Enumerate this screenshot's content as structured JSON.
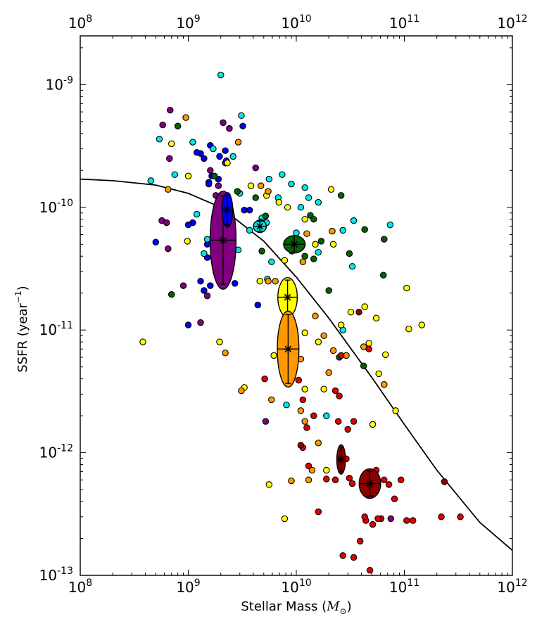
{
  "chart_data": {
    "type": "scatter",
    "xlabel": "Stellar Mass (",
    "xlabel_unit": "M",
    "xlabel_sub": "⊙",
    "xlabel_close": ")",
    "ylabel": "SSFR (year",
    "ylabel_sup": "−1",
    "ylabel_close": ")",
    "x_scale": "log",
    "y_scale": "log",
    "xlim": [
      100000000.0,
      1000000000000.0
    ],
    "ylim": [
      1e-13,
      2.5e-09
    ],
    "x_tick_labels": [
      {
        "base": "10",
        "exp": "8",
        "value": 100000000.0
      },
      {
        "base": "10",
        "exp": "9",
        "value": 1000000000.0
      },
      {
        "base": "10",
        "exp": "10",
        "value": 10000000000.0
      },
      {
        "base": "10",
        "exp": "11",
        "value": 100000000000.0
      },
      {
        "base": "10",
        "exp": "12",
        "value": 1000000000000.0
      }
    ],
    "y_tick_labels": [
      {
        "base": "10",
        "exp": "-9",
        "value": 1e-09
      },
      {
        "base": "10",
        "exp": "-10",
        "value": 1e-10
      },
      {
        "base": "10",
        "exp": "-11",
        "value": 1e-11
      },
      {
        "base": "10",
        "exp": "-12",
        "value": 1e-12
      },
      {
        "base": "10",
        "exp": "-13",
        "value": 1e-13
      }
    ],
    "top_axis_duplicate": true,
    "grid": false,
    "colors": {
      "purple": "#800080",
      "blue": "#0000ee",
      "cyan": "#00e8e8",
      "green": "#006400",
      "yellow": "#ffff00",
      "orange": "#ff9900",
      "red": "#e00000",
      "darkred": "#8b0000"
    },
    "curve": {
      "x": [
        100000000.0,
        200000000.0,
        500000000.0,
        1000000000.0,
        2000000000.0,
        5000000000.0,
        10000000000.0,
        20000000000.0,
        50000000000.0,
        100000000000.0,
        200000000000.0,
        500000000000.0,
        1000000000000.0
      ],
      "y": [
        1.7e-10,
        1.65e-10,
        1.52e-10,
        1.3e-10,
        1e-10,
        5.3e-11,
        2.7e-11,
        1.25e-11,
        4.1e-12,
        1.7e-12,
        7.2e-13,
        2.7e-13,
        1.6e-13
      ]
    },
    "series": [
      {
        "color": "purple",
        "x": [
          680000000.0,
          580000000.0,
          2100000000.0,
          2400000000.0,
          670000000.0,
          1600000000.0,
          2200000000.0,
          1900000000.0,
          650000000.0,
          1800000000.0,
          1950000000.0,
          570000000.0,
          4200000000.0,
          1300000000.0,
          1500000000.0,
          5200000000.0,
          75000000000.0,
          630000000.0,
          900000000.0
        ],
        "y": [
          6.2e-10,
          4.7e-10,
          4.9e-10,
          4.4e-10,
          2.5e-10,
          2e-10,
          2.3e-10,
          1.5e-10,
          4.6e-11,
          1.25e-10,
          1e-10,
          7.8e-11,
          2.1e-10,
          1.15e-11,
          1.9e-11,
          1.8e-12,
          2.9e-13,
          7.5e-11,
          2.3e-11
        ]
      },
      {
        "color": "blue",
        "x": [
          1600000000.0,
          1950000000.0,
          2200000000.0,
          1300000000.0,
          1400000000.0,
          1650000000.0,
          1900000000.0,
          1550000000.0,
          2000000000.0,
          2300000000.0,
          1100000000.0,
          1500000000.0,
          1000000000.0,
          500000000.0,
          3200000000.0,
          1400000000.0,
          1600000000.0,
          2100000000.0,
          1300000000.0,
          2700000000.0,
          1000000000.0,
          1800000000.0,
          3300000000.0,
          1500000000.0,
          4400000000.0,
          3700000000.0,
          1550000000.0,
          1200000000.0,
          2250000000.0
        ],
        "y": [
          3.2e-10,
          2.6e-10,
          2.9e-10,
          2.75e-10,
          2.5e-10,
          1.8e-10,
          1.7e-10,
          1.6e-10,
          1.2e-10,
          1.25e-10,
          7.5e-11,
          5e-11,
          7.2e-11,
          5.2e-11,
          4.6e-10,
          2.1e-11,
          2.3e-11,
          2.4e-11,
          2.5e-11,
          2.4e-11,
          1.1e-11,
          3e-11,
          9.5e-11,
          3.9e-11,
          1.6e-11,
          9.5e-11,
          1.55e-10,
          2.8e-10,
          2.4e-10
        ]
      },
      {
        "color": "cyan",
        "x": [
          2000000000.0,
          540000000.0,
          1100000000.0,
          3100000000.0,
          450000000.0,
          1700000000.0,
          2600000000.0,
          5600000000.0,
          7400000000.0,
          9000000000.0,
          11000000000.0,
          13000000000.0,
          16000000000.0,
          27000000000.0,
          34000000000.0,
          74000000000.0,
          4800000000.0,
          5300000000.0,
          3700000000.0,
          2900000000.0,
          1500000000.0,
          1200000000.0,
          750000000.0,
          1400000000.0,
          3000000000.0,
          2400000000.0,
          33000000000.0,
          10000000000.0,
          27000000000.0,
          8100000000.0,
          19000000000.0,
          6800000000.0,
          16000000000.0,
          5400000000.0,
          4700000000.0,
          5900000000.0,
          12000000000.0
        ],
        "y": [
          1.2e-09,
          3.6e-10,
          3.4e-10,
          5.6e-10,
          1.65e-10,
          3e-10,
          2.6e-10,
          1.7e-10,
          1.85e-10,
          1.55e-10,
          1e-10,
          1.2e-10,
          1.1e-10,
          6.5e-11,
          7.8e-11,
          7.2e-11,
          8.2e-11,
          7.5e-11,
          6.5e-11,
          4.5e-11,
          5.5e-11,
          8.8e-11,
          1.85e-10,
          4.2e-11,
          1.3e-10,
          8.8e-11,
          3.3e-11,
          6.2e-11,
          1e-11,
          2.45e-12,
          2e-12,
          1.2e-10,
          4.3e-11,
          2.6e-11,
          7.6e-11,
          3.6e-11,
          1.45e-10
        ]
      },
      {
        "color": "green",
        "x": [
          800000000.0,
          1750000000.0,
          2850000000.0,
          4200000000.0,
          5200000000.0,
          13500000000.0,
          14500000000.0,
          26000000000.0,
          43000000000.0,
          65000000000.0,
          9100000000.0,
          12000000000.0,
          14500000000.0,
          17000000000.0,
          31000000000.0,
          64000000000.0,
          4800000000.0,
          700000000.0,
          25000000000.0,
          42000000000.0,
          20000000000.0
        ],
        "y": [
          4.6e-10,
          1.8e-10,
          1.35e-10,
          1.2e-10,
          8.5e-11,
          8.6e-11,
          8e-11,
          1.25e-10,
          6.6e-11,
          5.5e-11,
          4.4e-11,
          4e-11,
          3.8e-11,
          5.3e-11,
          4.2e-11,
          2.8e-11,
          4.4e-11,
          1.95e-11,
          6e-12,
          5.1e-12,
          2.1e-11
        ]
      },
      {
        "color": "yellow",
        "x": [
          380000000.0,
          700000000.0,
          1000000000.0,
          980000000.0,
          2300000000.0,
          3800000000.0,
          5300000000.0,
          6900000000.0,
          8300000000.0,
          12000000000.0,
          15000000000.0,
          22000000000.0,
          32000000000.0,
          43000000000.0,
          55000000000.0,
          58000000000.0,
          67000000000.0,
          105000000000.0,
          110000000000.0,
          145000000000.0,
          51000000000.0,
          83000000000.0,
          9500000000.0,
          12000000000.0,
          19000000000.0,
          26000000000.0,
          1950000000.0,
          16000000000.0,
          5600000000.0,
          7800000000.0,
          6200000000.0,
          18000000000.0,
          47000000000.0,
          3300000000.0,
          7800000000.0,
          21000000000.0,
          12000000000.0,
          4600000000.0,
          23000000000.0
        ],
        "y": [
          8e-12,
          3.3e-10,
          1.8e-10,
          5.3e-11,
          2.3e-10,
          1.5e-10,
          1.25e-10,
          1.1e-10,
          1e-10,
          8e-11,
          5e-11,
          5e-11,
          1.4e-11,
          1.55e-11,
          1.25e-11,
          4.4e-12,
          6.3e-12,
          2.2e-11,
          1.02e-11,
          1.1e-11,
          1.7e-12,
          2.2e-12,
          6e-12,
          3.3e-12,
          7.2e-13,
          1.1e-11,
          8e-12,
          8e-12,
          5.5e-13,
          2.9e-13,
          6.2e-12,
          3.3e-12,
          7.8e-12,
          3.4e-12,
          3.7e-11,
          1.4e-10,
          9.5e-12,
          2.5e-11,
          6e-13
        ]
      },
      {
        "color": "orange",
        "x": [
          950000000.0,
          2900000000.0,
          2200000000.0,
          4700000000.0,
          650000000.0,
          5500000000.0,
          6400000000.0,
          9500000000.0,
          11500000000.0,
          12500000000.0,
          21500000000.0,
          15000000000.0,
          29000000000.0,
          42000000000.0,
          3100000000.0,
          5900000000.0,
          11000000000.0,
          12000000000.0,
          16000000000.0,
          14000000000.0,
          9000000000.0,
          13000000000.0,
          18000000000.0,
          22000000000.0,
          5500000000.0,
          65000000000.0,
          11000000000.0,
          20000000000.0
        ],
        "y": [
          5.4e-10,
          3.4e-10,
          6.5e-12,
          1.5e-10,
          1.4e-10,
          2.5e-11,
          2.5e-11,
          2.1e-11,
          3.6e-11,
          6.1e-11,
          6.4e-11,
          1.3e-11,
          6.2e-12,
          7.3e-12,
          3.2e-12,
          2.7e-12,
          2.2e-12,
          1.8e-12,
          1.2e-12,
          7.2e-13,
          5.9e-13,
          6e-13,
          9e-12,
          6.8e-12,
          1.35e-10,
          3.6e-12,
          5.8e-12,
          4.5e-12
        ]
      },
      {
        "color": "red",
        "x": [
          5100000000.0,
          10500000000.0,
          11500000000.0,
          14500000000.0,
          23000000000.0,
          25000000000.0,
          12500000000.0,
          11500000000.0,
          24500000000.0,
          30000000000.0,
          34000000000.0,
          47000000000.0,
          55000000000.0,
          65000000000.0,
          72000000000.0,
          81000000000.0,
          93000000000.0,
          105000000000.0,
          120000000000.0,
          220000000000.0,
          330000000000.0,
          13000000000.0,
          16000000000.0,
          19000000000.0,
          23000000000.0,
          31000000000.0,
          27000000000.0,
          34000000000.0,
          44000000000.0,
          51000000000.0,
          61000000000.0,
          39000000000.0,
          57000000000.0,
          43000000000.0,
          48000000000.0,
          46000000000.0,
          26000000000.0,
          29000000000.0,
          33000000000.0
        ],
        "y": [
          4e-12,
          3.9e-12,
          2.7e-12,
          2e-12,
          3.2e-12,
          2.9e-12,
          1.6e-12,
          1.1e-12,
          1.8e-12,
          1.55e-12,
          1.8e-12,
          7e-12,
          7.2e-13,
          6e-13,
          5.5e-13,
          4.2e-13,
          6e-13,
          2.8e-13,
          2.8e-13,
          3e-13,
          3e-13,
          7.8e-13,
          3.3e-13,
          6.1e-13,
          6e-13,
          6.2e-13,
          1.45e-13,
          1.4e-13,
          2.8e-13,
          2.6e-13,
          2.9e-13,
          1.9e-13,
          2.9e-13,
          3e-13,
          1.1e-13,
          4.5e-13,
          6.2e-12,
          8.9e-13,
          5.6e-13
        ]
      },
      {
        "color": "darkred",
        "x": [
          38000000000.0,
          11000000000.0,
          235000000000.0,
          48000000000.0
        ],
        "y": [
          1.4e-11,
          1.15e-12,
          5.8e-13,
          4.6e-13
        ]
      }
    ],
    "binned": [
      {
        "color": "purple",
        "x": 2100000000.0,
        "y": 5.4e-11,
        "w": 0.12,
        "h": 0.4,
        "xerr": 0.12,
        "yerr": 0.36
      },
      {
        "color": "blue",
        "x": 2300000000.0,
        "y": 9.5e-11,
        "w": 0.05,
        "h": 0.14,
        "xerr": 0.05,
        "yerr": 0.12
      },
      {
        "color": "cyan",
        "x": 4600000000.0,
        "y": 7e-11,
        "w": 0.06,
        "h": 0.05,
        "xerr": 0.06,
        "yerr": 0.04
      },
      {
        "color": "green",
        "x": 9600000000.0,
        "y": 5e-11,
        "w": 0.1,
        "h": 0.07,
        "xerr": 0.1,
        "yerr": 0.07
      },
      {
        "color": "yellow",
        "x": 8300000000.0,
        "y": 1.85e-11,
        "w": 0.09,
        "h": 0.16,
        "xerr": 0.09,
        "yerr": 0.14
      },
      {
        "color": "orange",
        "x": 8400000000.0,
        "y": 7e-12,
        "w": 0.1,
        "h": 0.31,
        "xerr": 0.1,
        "yerr": 0.28
      },
      {
        "color": "darkred",
        "x": 26000000000.0,
        "y": 8.8e-13,
        "w": 0.04,
        "h": 0.12,
        "xerr": 0.04,
        "yerr": 0.1
      },
      {
        "color": "darkred",
        "x": 48000000000.0,
        "y": 5.6e-13,
        "w": 0.1,
        "h": 0.12,
        "xerr": 0.1,
        "yerr": 0.1
      }
    ]
  }
}
